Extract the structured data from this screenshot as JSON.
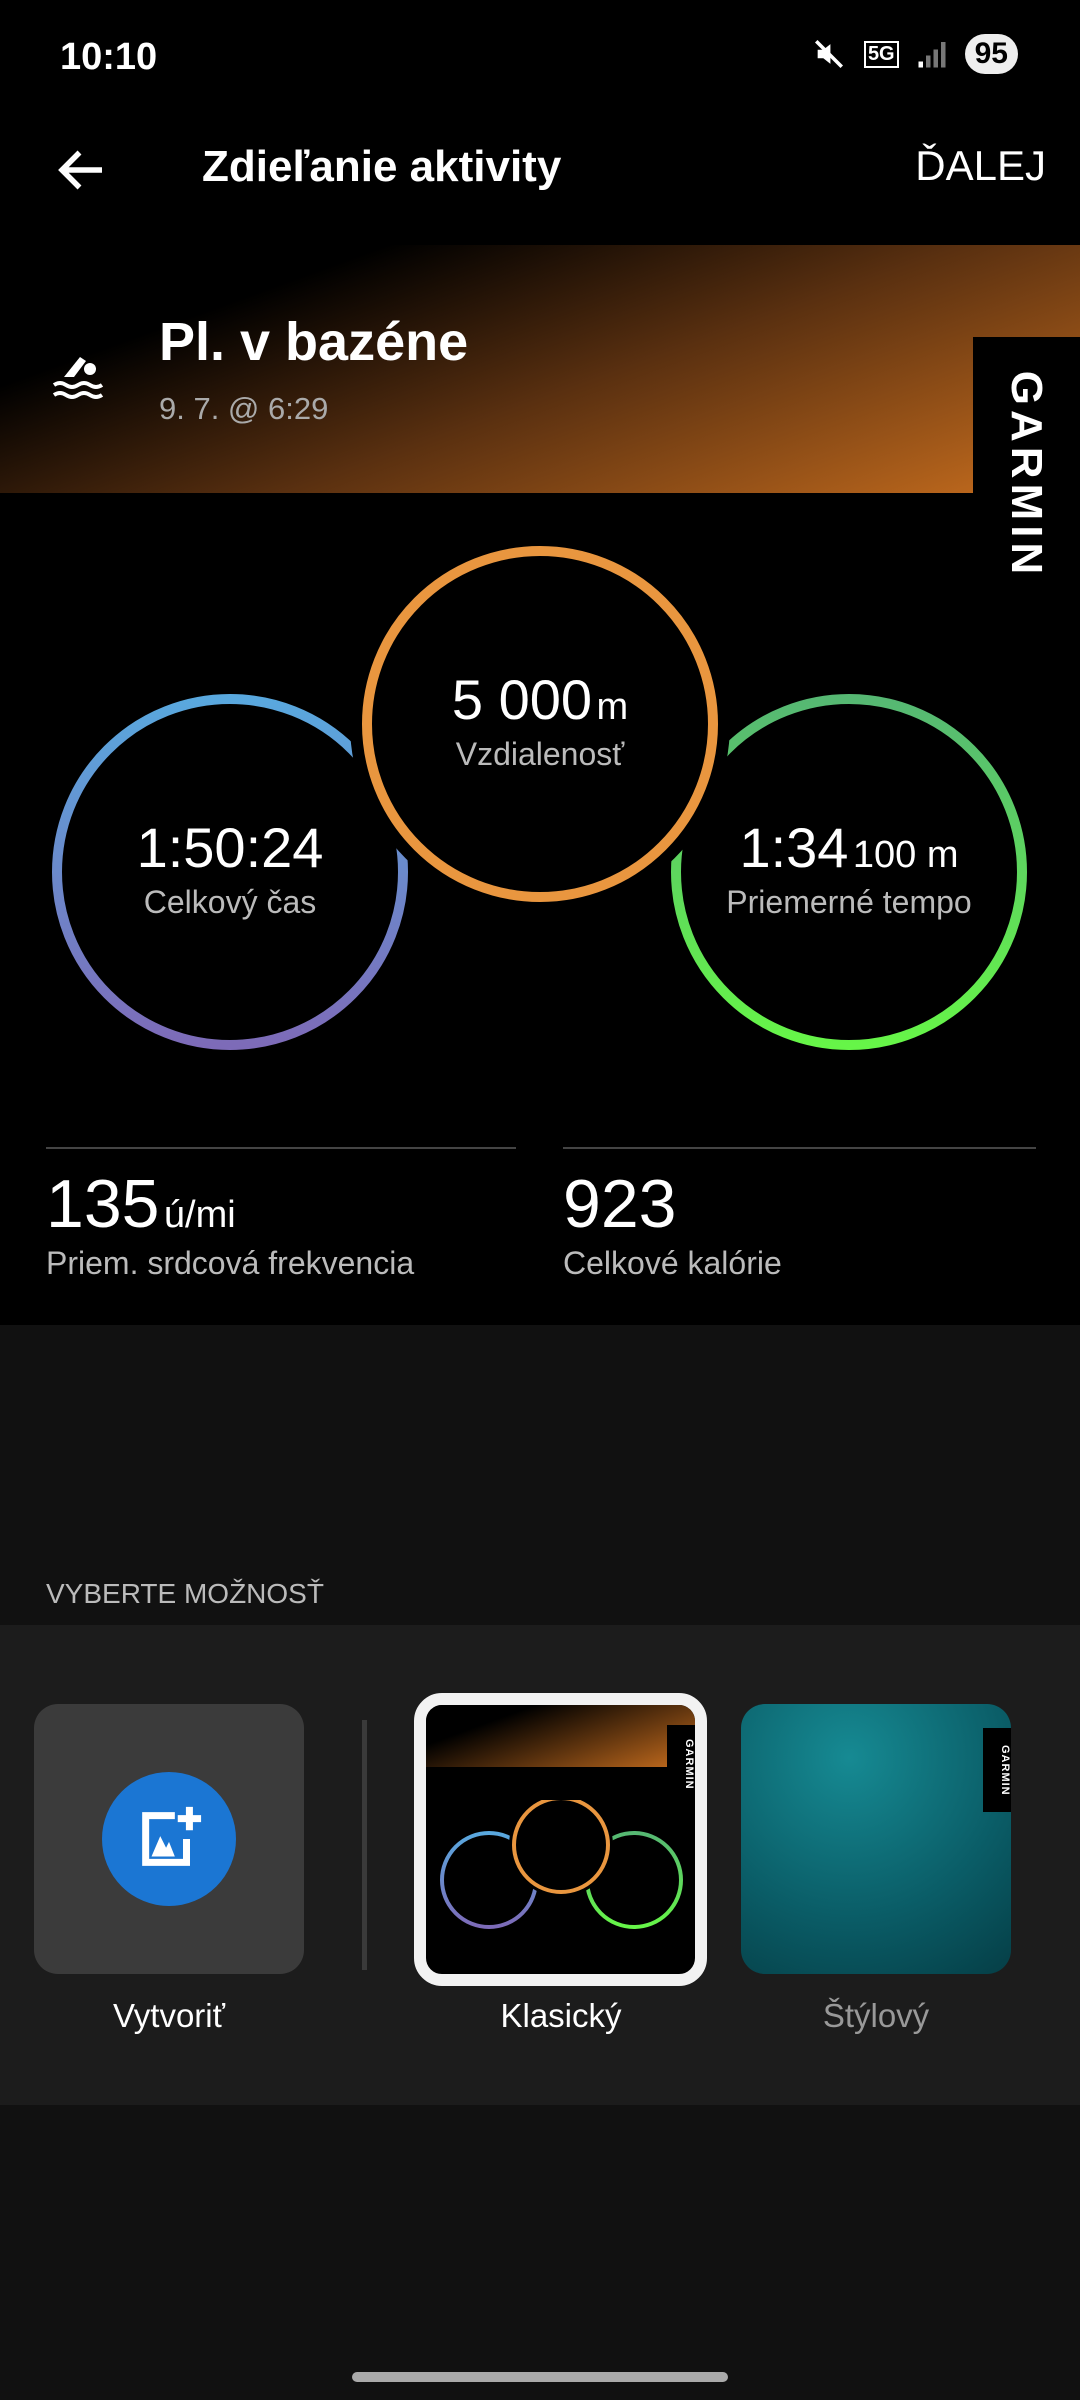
{
  "status_bar": {
    "time": "10:10",
    "network": "5G",
    "battery": "95",
    "icons": [
      "mute-icon",
      "5g-icon",
      "signal-icon",
      "battery-icon"
    ]
  },
  "header": {
    "title": "Zdieľanie aktivity",
    "next_label": "ĎALEJ",
    "back_icon": "arrow-left-icon"
  },
  "activity": {
    "icon": "swimming-icon",
    "title": "Pl. v bazéne",
    "date": "9. 7. @ 6:29",
    "brand": "GARMIN"
  },
  "metrics": [
    {
      "value": "1:50:24",
      "unit": "",
      "label": "Celkový čas",
      "color": "#5aa7dd"
    },
    {
      "value": "5 000",
      "unit": "m",
      "label": "Vzdialenosť",
      "color": "#e9963f"
    },
    {
      "value": "1:34",
      "unit": "100 m",
      "label": "Priemerné tempo",
      "color": "#5ef04a"
    }
  ],
  "stats": [
    {
      "value": "135",
      "unit": "ú/mi",
      "label": "Priem. srdcová frekvencia"
    },
    {
      "value": "923",
      "unit": "",
      "label": "Celkové kalórie"
    }
  ],
  "options": {
    "heading": "VYBERTE MOŽNOSŤ",
    "items": [
      {
        "label": "Vytvoriť",
        "icon": "add-photo-icon"
      },
      {
        "label": "Klasický",
        "selected": true
      },
      {
        "label": "Štýlový"
      }
    ]
  }
}
